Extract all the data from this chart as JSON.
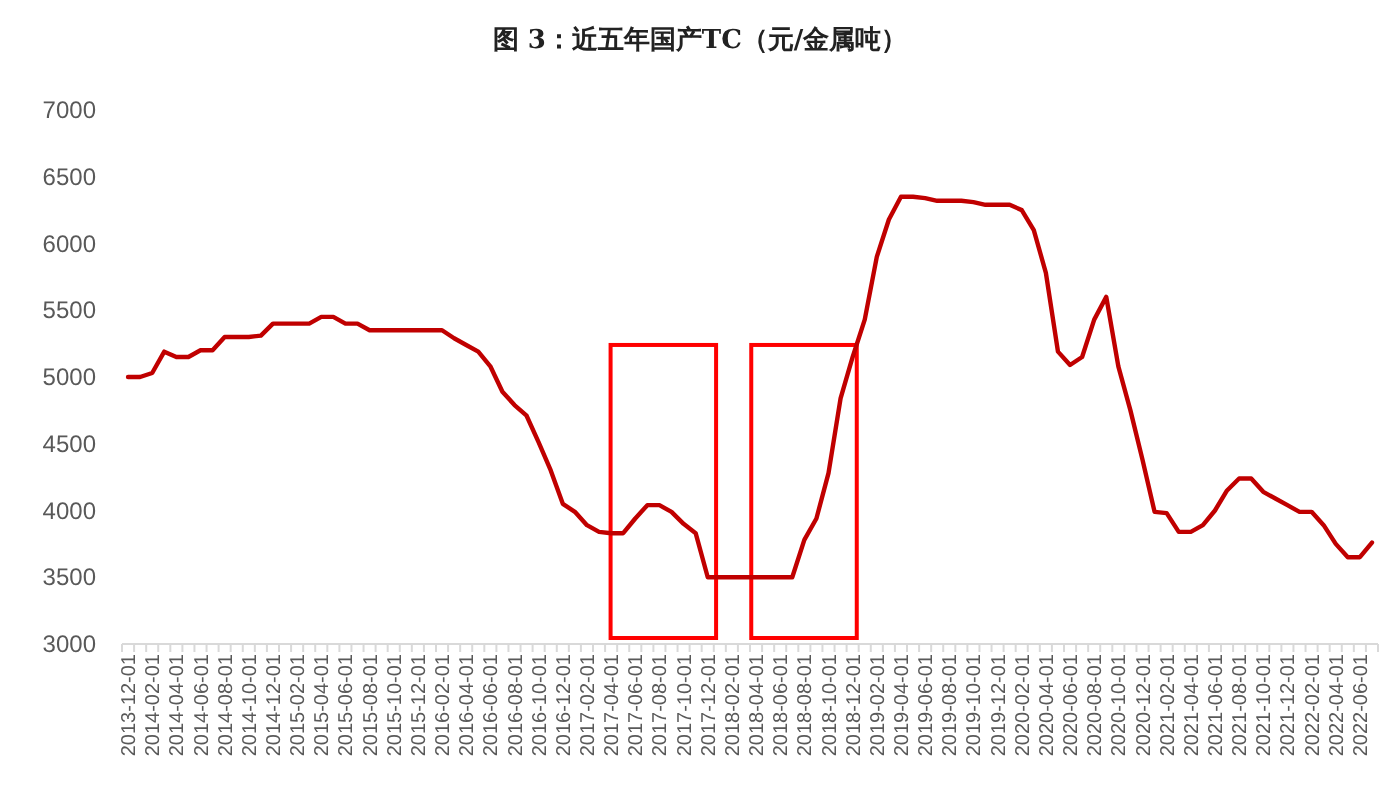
{
  "chart_data": {
    "type": "line",
    "title": "图 3：近五年国产TC（元/金属吨）",
    "categories": [
      "2013-12-01",
      null,
      "2014-02-01",
      null,
      "2014-04-01",
      null,
      "2014-06-01",
      null,
      "2014-08-01",
      null,
      "2014-10-01",
      null,
      "2014-12-01",
      null,
      "2015-02-01",
      null,
      "2015-04-01",
      null,
      "2015-06-01",
      null,
      "2015-08-01",
      null,
      "2015-10-01",
      null,
      "2015-12-01",
      null,
      "2016-02-01",
      null,
      "2016-04-01",
      null,
      "2016-06-01",
      null,
      "2016-08-01",
      null,
      "2016-10-01",
      null,
      "2016-12-01",
      null,
      "2017-02-01",
      null,
      "2017-04-01",
      null,
      "2017-06-01",
      null,
      "2017-08-01",
      null,
      "2017-10-01",
      null,
      "2017-12-01",
      null,
      "2018-02-01",
      null,
      "2018-04-01",
      null,
      "2018-06-01",
      null,
      "2018-08-01",
      null,
      "2018-10-01",
      null,
      "2018-12-01",
      null,
      "2019-02-01",
      null,
      "2019-04-01",
      null,
      "2019-06-01",
      null,
      "2019-08-01",
      null,
      "2019-10-01",
      null,
      "2019-12-01",
      null,
      "2020-02-01",
      null,
      "2020-04-01",
      null,
      "2020-06-01",
      null,
      "2020-08-01",
      null,
      "2020-10-01",
      null,
      "2020-12-01",
      null,
      "2021-02-01",
      null,
      "2021-04-01",
      null,
      "2021-06-01",
      null,
      "2021-08-01",
      null,
      "2021-10-01",
      null,
      "2021-12-01",
      null,
      "2022-02-01",
      null,
      "2022-04-01",
      null,
      "2022-06-01",
      null
    ],
    "series": [
      {
        "color": "#c00000",
        "values": [
          5000,
          5000,
          5030,
          5190,
          5150,
          5150,
          5200,
          5200,
          5300,
          5300,
          5300,
          5310,
          5400,
          5400,
          5400,
          5400,
          5450,
          5450,
          5400,
          5400,
          5350,
          5350,
          5350,
          5350,
          5350,
          5350,
          5350,
          5290,
          5240,
          5190,
          5080,
          4890,
          4790,
          4710,
          4510,
          4300,
          4050,
          3990,
          3890,
          3840,
          3830,
          3830,
          3940,
          4040,
          4040,
          3990,
          3900,
          3830,
          3500,
          3500,
          3500,
          3500,
          3500,
          3500,
          3500,
          3500,
          3780,
          3940,
          4280,
          4840,
          5150,
          5430,
          5900,
          6180,
          6350,
          6350,
          6340,
          6320,
          6320,
          6320,
          6310,
          6290,
          6290,
          6290,
          6250,
          6100,
          5780,
          5190,
          5090,
          5150,
          5430,
          5600,
          5080,
          4750,
          4380,
          3990,
          3980,
          3840,
          3840,
          3890,
          4000,
          4150,
          4240,
          4240,
          4140,
          4090,
          4040,
          3990,
          3990,
          3890,
          3750,
          3650,
          3650,
          3760
        ]
      }
    ],
    "ylim": [
      3000,
      7000
    ],
    "yticks": [
      3000,
      3500,
      4000,
      4500,
      5000,
      5500,
      6000,
      6500,
      7000
    ],
    "marker": "none",
    "line_style": "solid"
  }
}
